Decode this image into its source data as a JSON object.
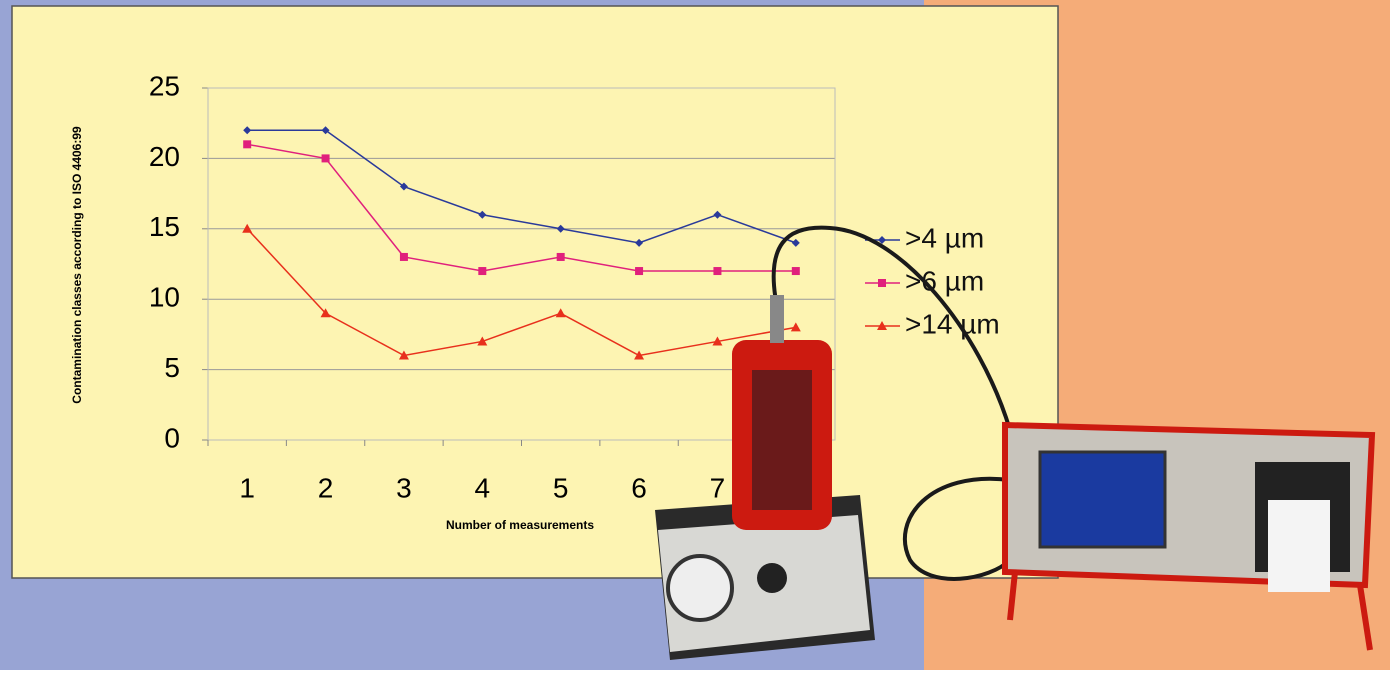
{
  "chart_data": {
    "type": "line",
    "x_label": "Number of measurements",
    "y_label": "Contamination classes according to ISO 4406:99",
    "categories": [
      1,
      2,
      3,
      4,
      5,
      6,
      7,
      null
    ],
    "series": [
      {
        "name": ">4 µm",
        "color": "#2a3a9a",
        "marker": "diamond",
        "values": [
          22,
          22,
          18,
          16,
          15,
          14,
          16,
          14
        ]
      },
      {
        "name": ">6 µm",
        "color": "#e0207c",
        "marker": "square",
        "values": [
          21,
          20,
          13,
          12,
          13,
          12,
          12,
          12
        ]
      },
      {
        "name": ">14  µm",
        "color": "#e8301c",
        "marker": "triangle",
        "values": [
          15,
          9,
          6,
          7,
          9,
          6,
          7,
          8
        ]
      }
    ],
    "ylim": [
      0,
      25
    ],
    "yticks": [
      0,
      5,
      10,
      15,
      20,
      25
    ],
    "grid": true,
    "legend": "right"
  }
}
